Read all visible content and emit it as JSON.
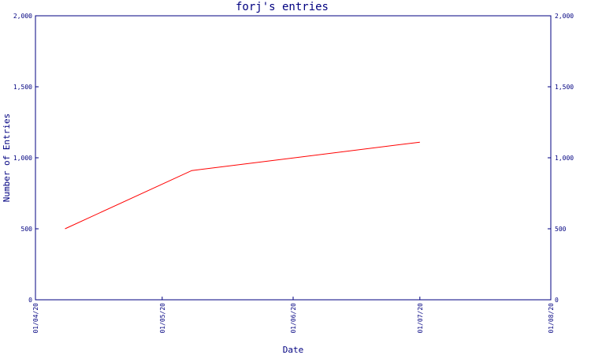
{
  "chart_data": {
    "type": "line",
    "title": "forj's entries",
    "xlabel": "Date",
    "ylabel": "Number of Entries",
    "x_ticks": [
      "01/04/20",
      "01/05/20",
      "01/06/20",
      "01/07/20",
      "01/08/20"
    ],
    "y_ticks": [
      "0",
      "500",
      "1,000",
      "1,500",
      "2,000"
    ],
    "y_tick_values": [
      0,
      500,
      1000,
      1500,
      2000
    ],
    "ylim": [
      0,
      2000
    ],
    "xlim": [
      "2020-04-01",
      "2020-08-01"
    ],
    "grid": false,
    "series": [
      {
        "name": "",
        "color": "#ff0000",
        "points": [
          {
            "x": "2020-04-08",
            "y": 500
          },
          {
            "x": "2020-05-08",
            "y": 910
          },
          {
            "x": "2020-07-01",
            "y": 1110
          }
        ]
      }
    ],
    "colors": {
      "axis": "#000080",
      "text": "#000080",
      "series": "#ff0000",
      "background": "#ffffff"
    }
  }
}
